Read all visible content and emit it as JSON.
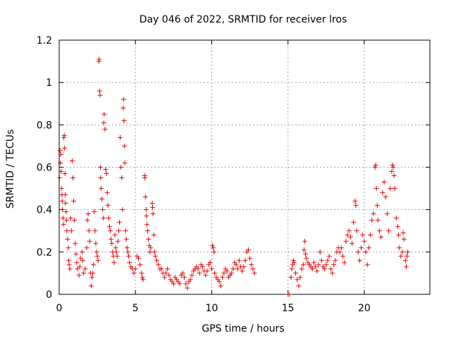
{
  "chart_data": {
    "type": "scatter",
    "title": "Day 046 of 2022, SRMTID for receiver lros",
    "xlabel": "GPS time / hours",
    "ylabel": "SRMTID / TECUs",
    "xlim": [
      0,
      24.3
    ],
    "ylim": [
      0,
      1.2
    ],
    "x_ticks": [
      0,
      5,
      10,
      15,
      20
    ],
    "x_tick_labels": [
      "0",
      "5",
      "10",
      "15",
      "20"
    ],
    "y_ticks": [
      0,
      0.2,
      0.4,
      0.6,
      0.8,
      1.0,
      1.2
    ],
    "y_tick_labels": [
      "0",
      "0.2",
      "0.4",
      "0.6",
      "0.8",
      "1",
      "1.2"
    ],
    "grid": true,
    "marker": "+",
    "series": [
      {
        "name": "SRMTID",
        "color": "#e60000",
        "points": [
          [
            0.02,
            0.55
          ],
          [
            0.05,
            0.68
          ],
          [
            0.08,
            0.62
          ],
          [
            0.1,
            0.66
          ],
          [
            0.12,
            0.58
          ],
          [
            0.15,
            0.5
          ],
          [
            0.18,
            0.47
          ],
          [
            0.2,
            0.44
          ],
          [
            0.22,
            0.4
          ],
          [
            0.25,
            0.36
          ],
          [
            0.28,
            0.33
          ],
          [
            0.3,
            0.74
          ],
          [
            0.33,
            0.75
          ],
          [
            0.35,
            0.69
          ],
          [
            0.38,
            0.57
          ],
          [
            0.4,
            0.47
          ],
          [
            0.42,
            0.43
          ],
          [
            0.45,
            0.39
          ],
          [
            0.48,
            0.35
          ],
          [
            0.5,
            0.3
          ],
          [
            0.55,
            0.26
          ],
          [
            0.6,
            0.22
          ],
          [
            0.62,
            0.16
          ],
          [
            0.65,
            0.14
          ],
          [
            0.7,
            0.12
          ],
          [
            0.75,
            0.36
          ],
          [
            0.8,
            0.3
          ],
          [
            0.85,
            0.63
          ],
          [
            0.9,
            0.55
          ],
          [
            0.95,
            0.44
          ],
          [
            1.0,
            0.35
          ],
          [
            1.05,
            0.24
          ],
          [
            1.1,
            0.19
          ],
          [
            1.15,
            0.15
          ],
          [
            1.2,
            0.12
          ],
          [
            1.3,
            0.09
          ],
          [
            1.35,
            0.13
          ],
          [
            1.4,
            0.17
          ],
          [
            1.5,
            0.2
          ],
          [
            1.55,
            0.16
          ],
          [
            1.6,
            0.1
          ],
          [
            1.7,
            0.12
          ],
          [
            1.8,
            0.22
          ],
          [
            1.85,
            0.35
          ],
          [
            1.9,
            0.38
          ],
          [
            1.95,
            0.3
          ],
          [
            2.0,
            0.25
          ],
          [
            2.05,
            0.1
          ],
          [
            2.1,
            0.04
          ],
          [
            2.15,
            0.08
          ],
          [
            2.2,
            0.1
          ],
          [
            2.25,
            0.14
          ],
          [
            2.3,
            0.39
          ],
          [
            2.35,
            0.3
          ],
          [
            2.4,
            0.24
          ],
          [
            2.45,
            0.2
          ],
          [
            2.5,
            0.18
          ],
          [
            2.55,
            0.16
          ],
          [
            2.6,
            1.1
          ],
          [
            2.62,
            1.11
          ],
          [
            2.65,
            0.96
          ],
          [
            2.68,
            0.94
          ],
          [
            2.7,
            0.6
          ],
          [
            2.72,
            0.55
          ],
          [
            2.75,
            0.5
          ],
          [
            2.8,
            0.45
          ],
          [
            2.85,
            0.4
          ],
          [
            2.9,
            0.36
          ],
          [
            2.92,
            0.81
          ],
          [
            2.95,
            0.85
          ],
          [
            3.0,
            0.78
          ],
          [
            3.05,
            0.59
          ],
          [
            3.1,
            0.57
          ],
          [
            3.15,
            0.48
          ],
          [
            3.2,
            0.42
          ],
          [
            3.25,
            0.36
          ],
          [
            3.3,
            0.32
          ],
          [
            3.35,
            0.3
          ],
          [
            3.4,
            0.26
          ],
          [
            3.45,
            0.24
          ],
          [
            3.5,
            0.2
          ],
          [
            3.55,
            0.18
          ],
          [
            3.6,
            0.15
          ],
          [
            3.65,
            0.28
          ],
          [
            3.7,
            0.22
          ],
          [
            3.75,
            0.2
          ],
          [
            3.8,
            0.18
          ],
          [
            3.85,
            0.25
          ],
          [
            3.9,
            0.3
          ],
          [
            3.95,
            0.34
          ],
          [
            4.0,
            0.74
          ],
          [
            4.05,
            0.6
          ],
          [
            4.1,
            0.55
          ],
          [
            4.15,
            0.4
          ],
          [
            4.2,
            0.88
          ],
          [
            4.22,
            0.92
          ],
          [
            4.25,
            0.82
          ],
          [
            4.28,
            0.7
          ],
          [
            4.3,
            0.62
          ],
          [
            4.35,
            0.3
          ],
          [
            4.4,
            0.26
          ],
          [
            4.45,
            0.22
          ],
          [
            4.5,
            0.2
          ],
          [
            4.55,
            0.18
          ],
          [
            4.6,
            0.15
          ],
          [
            4.7,
            0.13
          ],
          [
            4.8,
            0.12
          ],
          [
            4.9,
            0.1
          ],
          [
            5.0,
            0.12
          ],
          [
            5.1,
            0.18
          ],
          [
            5.2,
            0.17
          ],
          [
            5.3,
            0.14
          ],
          [
            5.4,
            0.1
          ],
          [
            5.45,
            0.08
          ],
          [
            5.5,
            0.07
          ],
          [
            5.6,
            0.56
          ],
          [
            5.62,
            0.55
          ],
          [
            5.65,
            0.46
          ],
          [
            5.7,
            0.4
          ],
          [
            5.72,
            0.37
          ],
          [
            5.75,
            0.33
          ],
          [
            5.8,
            0.3
          ],
          [
            5.85,
            0.26
          ],
          [
            5.9,
            0.23
          ],
          [
            5.95,
            0.2
          ],
          [
            6.0,
            0.22
          ],
          [
            6.1,
            0.43
          ],
          [
            6.12,
            0.41
          ],
          [
            6.15,
            0.38
          ],
          [
            6.2,
            0.28
          ],
          [
            6.25,
            0.2
          ],
          [
            6.3,
            0.18
          ],
          [
            6.4,
            0.16
          ],
          [
            6.5,
            0.14
          ],
          [
            6.6,
            0.12
          ],
          [
            6.7,
            0.12
          ],
          [
            6.8,
            0.1
          ],
          [
            6.9,
            0.08
          ],
          [
            7.0,
            0.1
          ],
          [
            7.1,
            0.12
          ],
          [
            7.2,
            0.09
          ],
          [
            7.3,
            0.07
          ],
          [
            7.4,
            0.06
          ],
          [
            7.5,
            0.05
          ],
          [
            7.6,
            0.08
          ],
          [
            7.7,
            0.07
          ],
          [
            7.8,
            0.06
          ],
          [
            7.9,
            0.05
          ],
          [
            8.0,
            0.09
          ],
          [
            8.1,
            0.1
          ],
          [
            8.2,
            0.08
          ],
          [
            8.3,
            0.05
          ],
          [
            8.4,
            0.03
          ],
          [
            8.5,
            0.06
          ],
          [
            8.6,
            0.07
          ],
          [
            8.7,
            0.09
          ],
          [
            8.8,
            0.11
          ],
          [
            8.9,
            0.12
          ],
          [
            9.0,
            0.13
          ],
          [
            9.1,
            0.12
          ],
          [
            9.2,
            0.1
          ],
          [
            9.3,
            0.14
          ],
          [
            9.4,
            0.13
          ],
          [
            9.5,
            0.11
          ],
          [
            9.6,
            0.09
          ],
          [
            9.7,
            0.11
          ],
          [
            9.8,
            0.14
          ],
          [
            9.9,
            0.15
          ],
          [
            10.0,
            0.12
          ],
          [
            10.05,
            0.23
          ],
          [
            10.1,
            0.22
          ],
          [
            10.15,
            0.2
          ],
          [
            10.2,
            0.1
          ],
          [
            10.3,
            0.08
          ],
          [
            10.4,
            0.07
          ],
          [
            10.5,
            0.06
          ],
          [
            10.6,
            0.04
          ],
          [
            10.7,
            0.08
          ],
          [
            10.8,
            0.1
          ],
          [
            10.9,
            0.12
          ],
          [
            11.0,
            0.11
          ],
          [
            11.1,
            0.08
          ],
          [
            11.2,
            0.09
          ],
          [
            11.3,
            0.1
          ],
          [
            11.4,
            0.12
          ],
          [
            11.5,
            0.15
          ],
          [
            11.6,
            0.14
          ],
          [
            11.7,
            0.12
          ],
          [
            11.8,
            0.16
          ],
          [
            11.9,
            0.13
          ],
          [
            12.0,
            0.11
          ],
          [
            12.1,
            0.13
          ],
          [
            12.2,
            0.16
          ],
          [
            12.3,
            0.2
          ],
          [
            12.4,
            0.21
          ],
          [
            12.5,
            0.17
          ],
          [
            12.6,
            0.14
          ],
          [
            12.7,
            0.12
          ],
          [
            12.8,
            0.1
          ],
          [
            15.0,
            0.0
          ],
          [
            15.1,
            0.0
          ],
          [
            15.2,
            0.08
          ],
          [
            15.25,
            0.12
          ],
          [
            15.3,
            0.14
          ],
          [
            15.35,
            0.16
          ],
          [
            15.4,
            0.15
          ],
          [
            15.5,
            0.1
          ],
          [
            15.6,
            0.07
          ],
          [
            15.7,
            0.04
          ],
          [
            15.8,
            0.08
          ],
          [
            15.9,
            0.12
          ],
          [
            16.0,
            0.14
          ],
          [
            16.05,
            0.21
          ],
          [
            16.1,
            0.25
          ],
          [
            16.15,
            0.19
          ],
          [
            16.2,
            0.17
          ],
          [
            16.3,
            0.15
          ],
          [
            16.4,
            0.14
          ],
          [
            16.5,
            0.13
          ],
          [
            16.6,
            0.12
          ],
          [
            16.7,
            0.15
          ],
          [
            16.8,
            0.13
          ],
          [
            16.9,
            0.11
          ],
          [
            17.0,
            0.14
          ],
          [
            17.1,
            0.2
          ],
          [
            17.2,
            0.16
          ],
          [
            17.3,
            0.13
          ],
          [
            17.4,
            0.12
          ],
          [
            17.5,
            0.14
          ],
          [
            17.6,
            0.16
          ],
          [
            17.7,
            0.18
          ],
          [
            17.8,
            0.12
          ],
          [
            17.9,
            0.1
          ],
          [
            18.0,
            0.14
          ],
          [
            18.1,
            0.16
          ],
          [
            18.2,
            0.2
          ],
          [
            18.3,
            0.22
          ],
          [
            18.4,
            0.2
          ],
          [
            18.5,
            0.22
          ],
          [
            18.6,
            0.18
          ],
          [
            18.7,
            0.15
          ],
          [
            18.8,
            0.25
          ],
          [
            18.9,
            0.28
          ],
          [
            19.0,
            0.3
          ],
          [
            19.1,
            0.27
          ],
          [
            19.2,
            0.24
          ],
          [
            19.3,
            0.34
          ],
          [
            19.4,
            0.44
          ],
          [
            19.45,
            0.42
          ],
          [
            19.5,
            0.3
          ],
          [
            19.6,
            0.2
          ],
          [
            19.7,
            0.16
          ],
          [
            19.8,
            0.22
          ],
          [
            19.9,
            0.28
          ],
          [
            20.0,
            0.25
          ],
          [
            20.1,
            0.2
          ],
          [
            20.2,
            0.14
          ],
          [
            20.3,
            0.22
          ],
          [
            20.4,
            0.28
          ],
          [
            20.5,
            0.35
          ],
          [
            20.6,
            0.38
          ],
          [
            20.7,
            0.6
          ],
          [
            20.75,
            0.61
          ],
          [
            20.8,
            0.5
          ],
          [
            20.85,
            0.42
          ],
          [
            20.9,
            0.35
          ],
          [
            21.0,
            0.3
          ],
          [
            21.1,
            0.27
          ],
          [
            21.2,
            0.48
          ],
          [
            21.3,
            0.53
          ],
          [
            21.4,
            0.46
          ],
          [
            21.5,
            0.38
          ],
          [
            21.6,
            0.3
          ],
          [
            21.7,
            0.5
          ],
          [
            21.8,
            0.58
          ],
          [
            21.85,
            0.61
          ],
          [
            21.9,
            0.6
          ],
          [
            21.95,
            0.56
          ],
          [
            22.0,
            0.5
          ],
          [
            22.1,
            0.36
          ],
          [
            22.2,
            0.32
          ],
          [
            22.25,
            0.28
          ],
          [
            22.3,
            0.22
          ],
          [
            22.4,
            0.18
          ],
          [
            22.5,
            0.2
          ],
          [
            22.55,
            0.29
          ],
          [
            22.6,
            0.26
          ],
          [
            22.7,
            0.16
          ],
          [
            22.75,
            0.13
          ],
          [
            22.8,
            0.18
          ],
          [
            22.85,
            0.2
          ]
        ]
      }
    ]
  }
}
